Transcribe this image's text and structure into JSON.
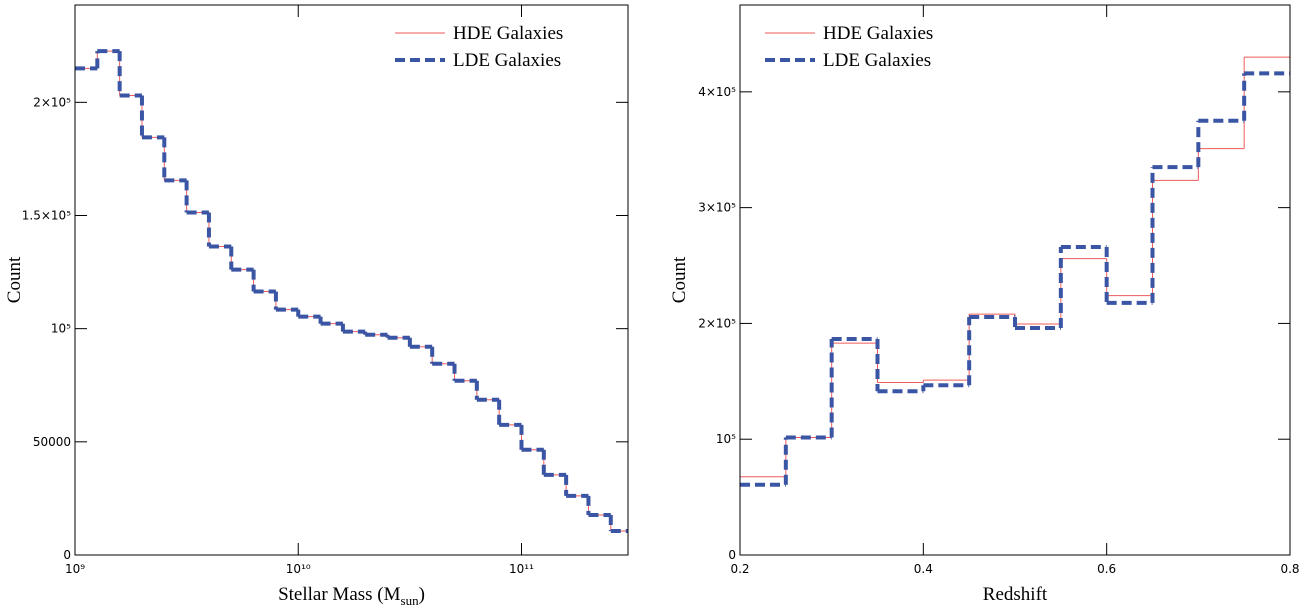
{
  "chart_data": [
    {
      "type": "histogram",
      "xlabel": {
        "text": "Stellar Mass (M",
        "subscript": "sun",
        "tail": ")"
      },
      "ylabel": "Count",
      "xscale": "log",
      "xlim": [
        1000000000.0,
        300000000000.0
      ],
      "ylim": [
        0,
        243000
      ],
      "legend": "upper right",
      "xticks": [
        {
          "value": 1000000000.0,
          "label": "10⁹"
        },
        {
          "value": 10000000000.0,
          "label": "10¹⁰"
        },
        {
          "value": 100000000000.0,
          "label": "10¹¹"
        }
      ],
      "yticks": [
        0,
        50000,
        {
          "value": 100000,
          "label": "10⁵"
        },
        {
          "value": 150000,
          "label": "1.5×10⁵"
        },
        {
          "value": 200000,
          "label": "2×10⁵"
        }
      ],
      "bins": [
        1000000000.0,
        1259000000.0,
        1585000000.0,
        1995000000.0,
        2512000000.0,
        3162000000.0,
        3981000000.0,
        5012000000.0,
        6310000000.0,
        7943000000.0,
        10000000000.0,
        12590000000.0,
        15850000000.0,
        19950000000.0,
        25120000000.0,
        31620000000.0,
        39810000000.0,
        50120000000.0,
        63100000000.0,
        79430000000.0,
        100000000000.0,
        125900000000.0,
        158500000000.0,
        199500000000.0,
        251200000000.0,
        316200000000.0
      ],
      "series": [
        {
          "name": "HDE Galaxies",
          "color": "#f05a5a",
          "style": "solid",
          "values": [
            215000,
            222600,
            203000,
            184500,
            165500,
            151300,
            136300,
            126100,
            116400,
            108400,
            105300,
            102200,
            98700,
            97300,
            96000,
            92000,
            84500,
            77000,
            68600,
            57500,
            46500,
            35400,
            26100,
            17700,
            10600
          ]
        },
        {
          "name": "LDE Galaxies",
          "color": "#3a55a4",
          "style": "dashed",
          "values": [
            215000,
            222600,
            203000,
            184500,
            165500,
            151300,
            136300,
            126100,
            116400,
            108400,
            105300,
            102200,
            98700,
            97300,
            96000,
            92000,
            84500,
            77000,
            68600,
            57500,
            46500,
            35400,
            26100,
            17700,
            10600
          ]
        }
      ]
    },
    {
      "type": "histogram",
      "xlabel": {
        "text": "Redshift"
      },
      "ylabel": "Count",
      "xscale": "linear",
      "xlim": [
        0.2,
        0.8
      ],
      "ylim": [
        0,
        475000
      ],
      "legend": "upper left",
      "xticks": [
        0.2,
        0.4,
        0.6,
        0.8
      ],
      "yticks": [
        0,
        {
          "value": 100000,
          "label": "10⁵"
        },
        {
          "value": 200000,
          "label": "2×10⁵"
        },
        {
          "value": 300000,
          "label": "3×10⁵"
        },
        {
          "value": 400000,
          "label": "4×10⁵"
        }
      ],
      "bins": [
        0.2,
        0.25,
        0.3,
        0.35,
        0.4,
        0.45,
        0.5,
        0.55,
        0.6,
        0.65,
        0.7,
        0.75,
        0.8
      ],
      "series": [
        {
          "name": "HDE Galaxies",
          "color": "#f05a5a",
          "style": "solid",
          "values": [
            67600,
            101500,
            183000,
            149000,
            151000,
            208000,
            199500,
            256000,
            224000,
            323500,
            351000,
            430000
          ]
        },
        {
          "name": "LDE Galaxies",
          "color": "#3a55a4",
          "style": "dashed",
          "values": [
            60700,
            101500,
            186500,
            141400,
            146600,
            205500,
            196000,
            266000,
            217700,
            335000,
            375000,
            416000
          ]
        }
      ]
    }
  ]
}
